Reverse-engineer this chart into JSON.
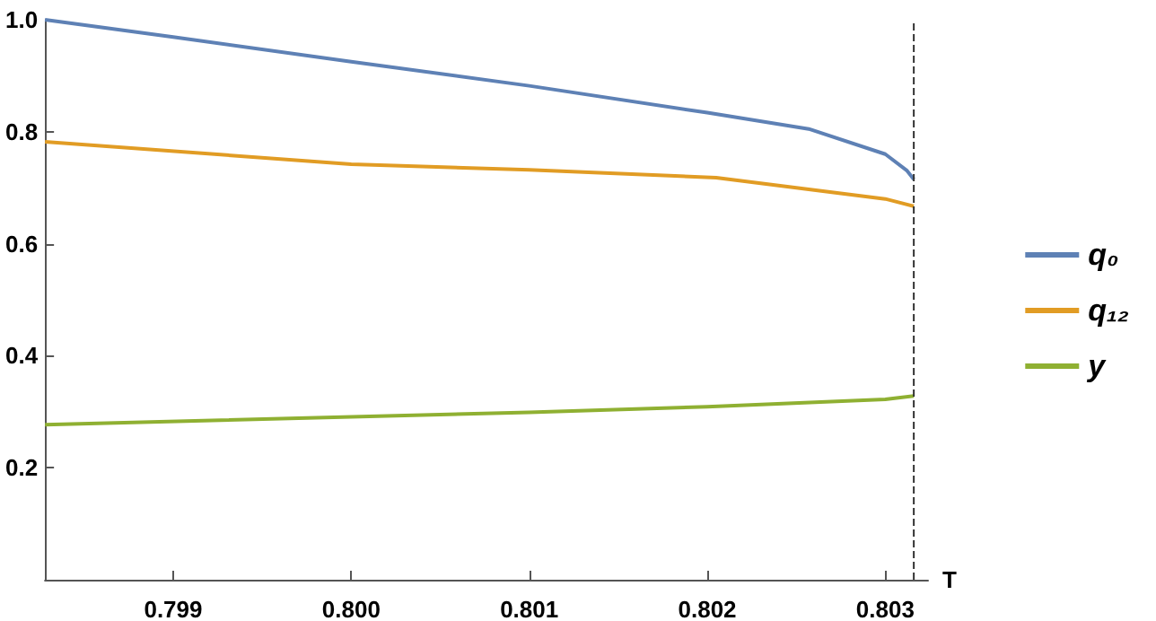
{
  "chart_data": {
    "type": "line",
    "xlabel": "T",
    "xlim": [
      0.79828,
      0.80324
    ],
    "xticks": [
      0.799,
      {
        "value": 0.8,
        "label": "0.800"
      },
      0.801,
      0.802,
      0.803
    ],
    "ylim": [
      0,
      1
    ],
    "yticks": [
      0.2,
      0.4,
      0.6,
      0.8,
      {
        "value": 1,
        "label": "1.0"
      }
    ],
    "grid": false,
    "legend": "right",
    "ref_lines": [
      {
        "axis": "x",
        "value": 0.80316,
        "line_style": "dashed",
        "color": "#333333"
      }
    ],
    "series": [
      {
        "name": "q₀",
        "color": "#5e81b5",
        "x": [
          0.79828,
          0.799,
          0.8,
          0.801,
          0.802,
          0.80257,
          0.803,
          0.80312,
          0.80316
        ],
        "values": [
          1.0,
          0.969,
          0.925,
          0.882,
          0.834,
          0.805,
          0.76,
          0.731,
          0.715
        ]
      },
      {
        "name": "q₁₂",
        "color": "#e19c24",
        "x": [
          0.79828,
          0.8,
          0.801,
          0.80205,
          0.803,
          0.80316
        ],
        "values": [
          0.782,
          0.742,
          0.732,
          0.718,
          0.68,
          0.667
        ]
      },
      {
        "name": "y",
        "color": "#8fb032",
        "x": [
          0.79828,
          0.801,
          0.802,
          0.803,
          0.80316
        ],
        "values": [
          0.277,
          0.299,
          0.309,
          0.322,
          0.328
        ]
      }
    ]
  }
}
